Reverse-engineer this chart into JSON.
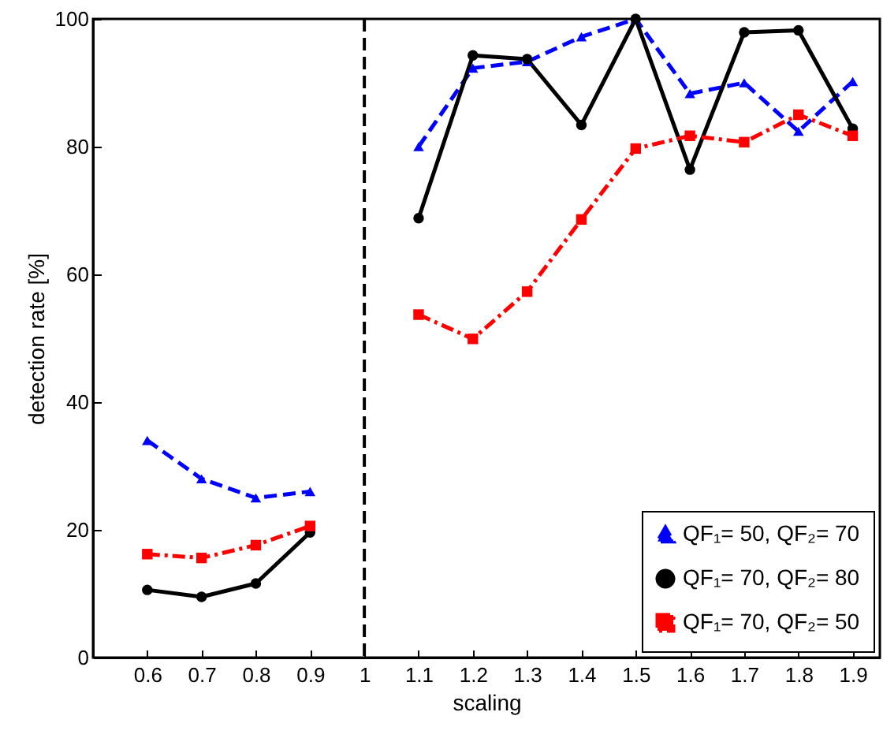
{
  "chart_data": {
    "type": "line",
    "xlabel": "scaling",
    "ylabel": "detection rate [%]",
    "x": [
      0.6,
      0.7,
      0.8,
      0.9,
      1,
      1.1,
      1.2,
      1.3,
      1.4,
      1.5,
      1.6,
      1.7,
      1.8,
      1.9
    ],
    "series": [
      {
        "name": "QF₁= 50, QF₂= 70",
        "color": "#0000ff",
        "marker": "triangle",
        "line_style": "dashed",
        "values": [
          34,
          28,
          25,
          26,
          null,
          80,
          92.3,
          93.3,
          97.2,
          100,
          88.3,
          90,
          82.4,
          90.2
        ]
      },
      {
        "name": "QF₁= 70, QF₂= 80",
        "color": "#000000",
        "marker": "circle",
        "line_style": "solid",
        "values": [
          10.6,
          9.5,
          11.6,
          19.6,
          null,
          68.8,
          94.3,
          93.7,
          83.4,
          100,
          76.4,
          97.9,
          98.2,
          82.8
        ]
      },
      {
        "name": "QF₁= 70, QF₂= 50",
        "color": "#ff0000",
        "marker": "square",
        "line_style": "dashdot",
        "values": [
          16.2,
          15.6,
          17.6,
          20.6,
          null,
          53.7,
          49.9,
          57.3,
          68.6,
          79.7,
          81.7,
          80.7,
          85,
          81.7
        ]
      }
    ],
    "xlim": [
      0.5,
      1.95
    ],
    "xticks": [
      0.6,
      0.7,
      0.8,
      0.9,
      1,
      1.1,
      1.2,
      1.3,
      1.4,
      1.5,
      1.6,
      1.7,
      1.8,
      1.9
    ],
    "ylim": [
      0,
      100
    ],
    "yticks": [
      0,
      20,
      40,
      60,
      80,
      100
    ],
    "ref_lines": [
      {
        "axis": "x",
        "value": 1,
        "color": "#000000",
        "line_style": "dashed"
      }
    ],
    "grid": false,
    "legend": "bottom right"
  }
}
